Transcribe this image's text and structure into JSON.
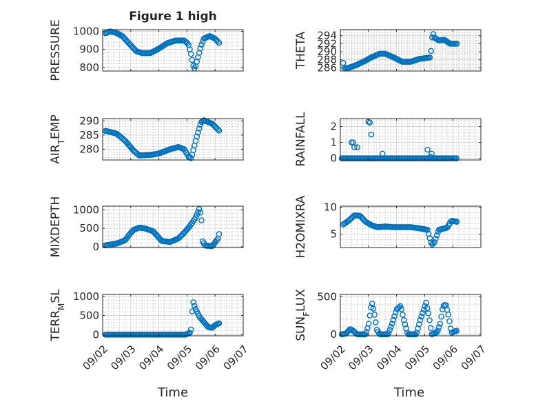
{
  "figure": {
    "title": "Figure 1 high",
    "x_tick_labels": [
      "09/02",
      "09/03",
      "09/04",
      "09/05",
      "09/06",
      "09/07"
    ],
    "xlabel": "Time",
    "marker_color": "#0072BD"
  },
  "chart_data": [
    {
      "type": "scatter",
      "ylabel": "PRESSURE",
      "ylim": [
        780,
        1010
      ],
      "yticks": [
        800,
        900,
        1000
      ],
      "xlim": [
        "09/02",
        "09/07"
      ],
      "grid": true,
      "anchors": [
        [
          0.1,
          990
        ],
        [
          0.25,
          1000
        ],
        [
          0.45,
          995
        ],
        [
          0.7,
          975
        ],
        [
          0.9,
          940
        ],
        [
          1.2,
          890
        ],
        [
          1.4,
          880
        ],
        [
          1.7,
          880
        ],
        [
          2.0,
          905
        ],
        [
          2.3,
          935
        ],
        [
          2.6,
          950
        ],
        [
          2.9,
          950
        ],
        [
          3.05,
          930
        ],
        [
          3.15,
          870
        ],
        [
          3.22,
          810
        ],
        [
          3.28,
          790
        ],
        [
          3.38,
          850
        ],
        [
          3.5,
          920
        ],
        [
          3.6,
          960
        ],
        [
          3.8,
          975
        ],
        [
          4.0,
          960
        ],
        [
          4.15,
          935
        ]
      ]
    },
    {
      "type": "scatter",
      "ylabel": "THETA",
      "ylim": [
        285.2,
        295.5
      ],
      "yticks": [
        286,
        288,
        290,
        292,
        294
      ],
      "xlim": [
        "09/02",
        "09/07"
      ],
      "grid": true,
      "anchors": [
        [
          0.1,
          287.2
        ],
        [
          0.15,
          285.8
        ],
        [
          0.3,
          286.0
        ],
        [
          0.6,
          286.8
        ],
        [
          0.9,
          287.8
        ],
        [
          1.1,
          288.6
        ],
        [
          1.4,
          289.5
        ],
        [
          1.6,
          289.5
        ],
        [
          1.9,
          288.6
        ],
        [
          2.2,
          287.5
        ],
        [
          2.5,
          287.5
        ],
        [
          2.8,
          288.2
        ],
        [
          3.1,
          288.5
        ],
        [
          3.2,
          288.6
        ],
        [
          3.25,
          291.8
        ],
        [
          3.28,
          295.0
        ],
        [
          3.35,
          293.5
        ],
        [
          3.5,
          292.8
        ],
        [
          3.7,
          293.0
        ],
        [
          3.9,
          292.0
        ],
        [
          4.15,
          292.0
        ]
      ]
    },
    {
      "type": "scatter",
      "ylabel": "AIR_TEMP",
      "ylim": [
        276.2,
        290.8
      ],
      "yticks": [
        280,
        285,
        290
      ],
      "xlim": [
        "09/02",
        "09/07"
      ],
      "grid": true,
      "anchors": [
        [
          0.1,
          286.5
        ],
        [
          0.5,
          285.5
        ],
        [
          0.8,
          283.0
        ],
        [
          1.1,
          279.5
        ],
        [
          1.3,
          277.8
        ],
        [
          1.7,
          278.0
        ],
        [
          2.0,
          278.5
        ],
        [
          2.4,
          280.0
        ],
        [
          2.7,
          280.8
        ],
        [
          2.9,
          280.0
        ],
        [
          3.05,
          277.5
        ],
        [
          3.15,
          276.8
        ],
        [
          3.35,
          284.5
        ],
        [
          3.5,
          289.5
        ],
        [
          3.6,
          290.2
        ],
        [
          3.9,
          289.0
        ],
        [
          4.15,
          286.5
        ]
      ]
    },
    {
      "type": "scatter",
      "ylabel": "RAINFALL",
      "ylim": [
        -0.1,
        2.5
      ],
      "yticks": [
        0,
        1,
        2
      ],
      "xlim": [
        "09/02",
        "09/07"
      ],
      "grid": true,
      "scatter_points": [
        [
          0.2,
          0
        ],
        [
          0.4,
          1.0
        ],
        [
          0.45,
          1.0
        ],
        [
          0.5,
          0.7
        ],
        [
          0.6,
          0.7
        ],
        [
          1.0,
          2.3
        ],
        [
          1.05,
          2.25
        ],
        [
          1.1,
          1.5
        ],
        [
          1.5,
          0.3
        ],
        [
          3.1,
          0.55
        ],
        [
          3.2,
          0.1
        ],
        [
          3.25,
          0.3
        ]
      ],
      "baseline": 0,
      "baseline_range": [
        0.05,
        4.15
      ]
    },
    {
      "type": "scatter",
      "ylabel": "MIXDEPTH",
      "ylim": [
        -20,
        1100
      ],
      "yticks": [
        0,
        500,
        1000
      ],
      "xlim": [
        "09/02",
        "09/07"
      ],
      "grid": true,
      "anchors": [
        [
          0.1,
          40
        ],
        [
          0.5,
          90
        ],
        [
          0.8,
          180
        ],
        [
          1.0,
          380
        ],
        [
          1.1,
          460
        ],
        [
          1.3,
          520
        ],
        [
          1.5,
          500
        ],
        [
          1.8,
          420
        ],
        [
          2.1,
          160
        ],
        [
          2.4,
          130
        ],
        [
          2.7,
          230
        ],
        [
          2.9,
          380
        ],
        [
          3.1,
          560
        ],
        [
          3.3,
          780
        ],
        [
          3.45,
          1050
        ],
        [
          3.52,
          700
        ],
        [
          3.55,
          160
        ],
        [
          3.65,
          30
        ],
        [
          3.9,
          20
        ],
        [
          4.1,
          220
        ],
        [
          4.15,
          370
        ]
      ]
    },
    {
      "type": "scatter",
      "ylabel": "H2OMIXRA",
      "ylim": [
        2.5,
        10.2
      ],
      "yticks": [
        5,
        10
      ],
      "xlim": [
        "09/02",
        "09/07"
      ],
      "grid": true,
      "anchors": [
        [
          0.1,
          6.8
        ],
        [
          0.3,
          7.5
        ],
        [
          0.5,
          8.5
        ],
        [
          0.7,
          8.4
        ],
        [
          0.9,
          7.3
        ],
        [
          1.1,
          6.7
        ],
        [
          1.3,
          6.3
        ],
        [
          1.6,
          6.4
        ],
        [
          1.9,
          6.3
        ],
        [
          2.2,
          6.3
        ],
        [
          2.5,
          6.3
        ],
        [
          2.8,
          6.1
        ],
        [
          3.1,
          5.8
        ],
        [
          3.25,
          3.0
        ],
        [
          3.35,
          3.5
        ],
        [
          3.5,
          5.8
        ],
        [
          3.8,
          6.2
        ],
        [
          3.95,
          7.5
        ],
        [
          4.15,
          7.3
        ]
      ]
    },
    {
      "type": "scatter",
      "ylabel": "TERR_MSL",
      "ylim": [
        -30,
        1050
      ],
      "yticks": [
        0,
        500,
        1000
      ],
      "xlim": [
        "09/02",
        "09/07"
      ],
      "grid": true,
      "anchors": [
        [
          0.1,
          0
        ],
        [
          2.95,
          0
        ],
        [
          3.1,
          50
        ],
        [
          3.15,
          150
        ],
        [
          3.18,
          550
        ],
        [
          3.2,
          900
        ],
        [
          3.3,
          680
        ],
        [
          3.45,
          460
        ],
        [
          3.6,
          330
        ],
        [
          3.75,
          200
        ],
        [
          3.9,
          180
        ],
        [
          4.0,
          250
        ],
        [
          4.15,
          300
        ]
      ]
    },
    {
      "type": "scatter",
      "ylabel": "SUN_FLUX",
      "ylim": [
        -20,
        530
      ],
      "yticks": [
        0,
        500
      ],
      "xlim": [
        "09/02",
        "09/07"
      ],
      "grid": true,
      "anchors": [
        [
          0.05,
          0
        ],
        [
          0.2,
          10
        ],
        [
          0.35,
          70
        ],
        [
          0.45,
          50
        ],
        [
          0.6,
          0
        ],
        [
          0.9,
          0
        ],
        [
          1.0,
          120
        ],
        [
          1.12,
          430
        ],
        [
          1.2,
          300
        ],
        [
          1.3,
          60
        ],
        [
          1.4,
          0
        ],
        [
          1.7,
          0
        ],
        [
          1.85,
          150
        ],
        [
          2.0,
          330
        ],
        [
          2.15,
          380
        ],
        [
          2.25,
          200
        ],
        [
          2.4,
          0
        ],
        [
          2.7,
          0
        ],
        [
          2.85,
          200
        ],
        [
          3.05,
          420
        ],
        [
          3.15,
          250
        ],
        [
          3.25,
          0
        ],
        [
          3.45,
          30
        ],
        [
          3.55,
          140
        ],
        [
          3.65,
          370
        ],
        [
          3.75,
          400
        ],
        [
          3.85,
          250
        ],
        [
          3.95,
          20
        ],
        [
          4.15,
          50
        ]
      ]
    }
  ]
}
